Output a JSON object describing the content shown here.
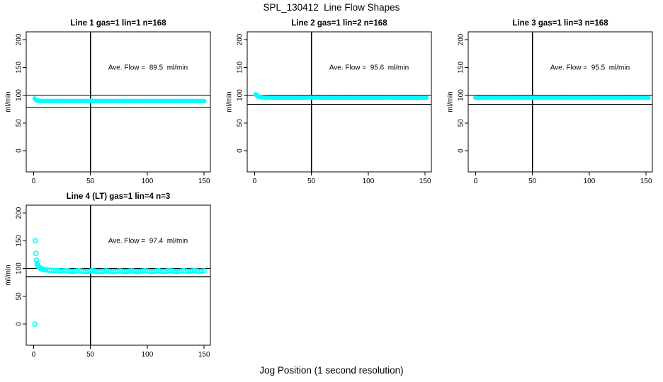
{
  "page": {
    "title": "SPL_130412  Line Flow Shapes",
    "xlabel": "Jog Position (1 second resolution)",
    "background": "#ffffff",
    "marker_color": "#00FFFF",
    "axis_color": "#000000"
  },
  "chart_data": [
    {
      "type": "scatter",
      "title": "Line 1 gas=1 lin=1 n=168",
      "annotation": "Ave. Flow =  89.5  ml/min",
      "ave_flow_ml_min": 89.5,
      "ylabel": "ml/min",
      "x_ticks": [
        0,
        50,
        100,
        150
      ],
      "y_ticks": [
        0,
        50,
        100,
        150,
        200
      ],
      "xlim": [
        -6.5,
        155.5
      ],
      "ylim": [
        -38,
        214
      ],
      "vline_x": 50,
      "hlines": [
        100,
        78.3
      ],
      "marker": "filled-band",
      "marker_color": "#00FFFF",
      "points": [
        [
          1,
          93.8
        ],
        [
          2,
          91.8
        ],
        [
          3,
          90.7
        ],
        [
          4,
          90.1
        ],
        [
          5,
          89.8
        ],
        [
          6,
          89.6
        ],
        [
          8,
          89.5
        ],
        [
          10,
          89.5
        ],
        [
          12,
          89.5
        ],
        [
          14,
          89.5
        ],
        [
          16,
          89.5
        ],
        [
          18,
          89.5
        ],
        [
          20,
          89.5
        ],
        [
          22,
          89.5
        ],
        [
          24,
          89.5
        ],
        [
          26,
          89.5
        ],
        [
          28,
          89.5
        ],
        [
          30,
          89.5
        ],
        [
          32,
          89.5
        ],
        [
          34,
          89.5
        ],
        [
          36,
          89.5
        ],
        [
          38,
          89.5
        ],
        [
          40,
          89.5
        ],
        [
          42,
          89.5
        ],
        [
          44,
          89.5
        ],
        [
          46,
          89.5
        ],
        [
          48,
          89.5
        ],
        [
          50,
          89.5
        ],
        [
          52,
          89.5
        ],
        [
          54,
          89.5
        ],
        [
          56,
          89.5
        ],
        [
          58,
          89.5
        ],
        [
          60,
          89.5
        ],
        [
          62,
          89.5
        ],
        [
          64,
          89.5
        ],
        [
          66,
          89.5
        ],
        [
          68,
          89.5
        ],
        [
          70,
          89.5
        ],
        [
          72,
          89.5
        ],
        [
          74,
          89.5
        ],
        [
          76,
          89.5
        ],
        [
          78,
          89.5
        ],
        [
          80,
          89.5
        ],
        [
          82,
          89.5
        ],
        [
          84,
          89.5
        ],
        [
          86,
          89.5
        ],
        [
          88,
          89.5
        ],
        [
          90,
          89.5
        ],
        [
          92,
          89.5
        ],
        [
          94,
          89.5
        ],
        [
          96,
          89.5
        ],
        [
          98,
          89.5
        ],
        [
          100,
          89.5
        ],
        [
          102,
          89.5
        ],
        [
          104,
          89.5
        ],
        [
          106,
          89.5
        ],
        [
          108,
          89.5
        ],
        [
          110,
          89.5
        ],
        [
          112,
          89.5
        ],
        [
          114,
          89.5
        ],
        [
          116,
          89.5
        ],
        [
          118,
          89.5
        ],
        [
          120,
          89.5
        ],
        [
          122,
          89.5
        ],
        [
          124,
          89.5
        ],
        [
          126,
          89.5
        ],
        [
          128,
          89.5
        ],
        [
          130,
          89.5
        ],
        [
          132,
          89.5
        ],
        [
          134,
          89.5
        ],
        [
          136,
          89.5
        ],
        [
          138,
          89.5
        ],
        [
          140,
          89.5
        ],
        [
          142,
          89.5
        ],
        [
          144,
          89.5
        ],
        [
          146,
          89.5
        ],
        [
          148,
          89.5
        ],
        [
          150,
          89.5
        ]
      ]
    },
    {
      "type": "scatter",
      "title": "Line 2 gas=1 lin=2 n=168",
      "annotation": "Ave. Flow =  95.6  ml/min",
      "ave_flow_ml_min": 95.6,
      "ylabel": "ml/min",
      "x_ticks": [
        0,
        50,
        100,
        150
      ],
      "y_ticks": [
        0,
        50,
        100,
        150,
        200
      ],
      "xlim": [
        -6.5,
        155.5
      ],
      "ylim": [
        -38,
        214
      ],
      "vline_x": 50,
      "hlines": [
        100,
        83.7
      ],
      "marker": "filled-band",
      "marker_color": "#00FFFF",
      "points": [
        [
          1,
          101.5
        ],
        [
          2,
          99.6
        ],
        [
          3,
          98.2
        ],
        [
          4,
          97.3
        ],
        [
          5,
          96.7
        ],
        [
          6,
          96.3
        ],
        [
          8,
          96.0
        ],
        [
          10,
          95.8
        ],
        [
          12,
          95.7
        ],
        [
          14,
          95.6
        ],
        [
          16,
          95.6
        ],
        [
          18,
          95.6
        ],
        [
          20,
          95.6
        ],
        [
          22,
          95.6
        ],
        [
          24,
          95.6
        ],
        [
          26,
          95.6
        ],
        [
          28,
          95.6
        ],
        [
          30,
          95.6
        ],
        [
          32,
          95.6
        ],
        [
          34,
          95.6
        ],
        [
          36,
          95.6
        ],
        [
          38,
          95.6
        ],
        [
          40,
          95.6
        ],
        [
          42,
          95.6
        ],
        [
          44,
          95.6
        ],
        [
          46,
          95.6
        ],
        [
          48,
          95.6
        ],
        [
          50,
          95.6
        ],
        [
          52,
          95.6
        ],
        [
          54,
          95.6
        ],
        [
          56,
          95.6
        ],
        [
          58,
          95.6
        ],
        [
          60,
          95.6
        ],
        [
          62,
          95.6
        ],
        [
          64,
          95.6
        ],
        [
          66,
          95.6
        ],
        [
          68,
          95.6
        ],
        [
          70,
          95.6
        ],
        [
          72,
          95.6
        ],
        [
          74,
          95.6
        ],
        [
          76,
          95.6
        ],
        [
          78,
          95.6
        ],
        [
          80,
          95.6
        ],
        [
          82,
          95.6
        ],
        [
          84,
          95.6
        ],
        [
          86,
          95.6
        ],
        [
          88,
          95.6
        ],
        [
          90,
          95.6
        ],
        [
          92,
          95.6
        ],
        [
          94,
          95.6
        ],
        [
          96,
          95.6
        ],
        [
          98,
          95.6
        ],
        [
          100,
          95.6
        ],
        [
          102,
          95.6
        ],
        [
          104,
          95.6
        ],
        [
          106,
          95.6
        ],
        [
          108,
          95.6
        ],
        [
          110,
          95.6
        ],
        [
          112,
          95.6
        ],
        [
          114,
          95.6
        ],
        [
          116,
          95.6
        ],
        [
          118,
          95.6
        ],
        [
          120,
          95.6
        ],
        [
          122,
          95.6
        ],
        [
          124,
          95.6
        ],
        [
          126,
          95.6
        ],
        [
          128,
          95.6
        ],
        [
          130,
          95.6
        ],
        [
          132,
          95.6
        ],
        [
          134,
          95.6
        ],
        [
          136,
          95.6
        ],
        [
          138,
          95.6
        ],
        [
          140,
          95.6
        ],
        [
          142,
          95.6
        ],
        [
          144,
          95.6
        ],
        [
          146,
          95.6
        ],
        [
          148,
          95.6
        ],
        [
          150,
          95.6
        ],
        [
          151,
          95.6
        ]
      ]
    },
    {
      "type": "scatter",
      "title": "Line 3 gas=1 lin=3 n=168",
      "annotation": "Ave. Flow =  95.5  ml/min",
      "ave_flow_ml_min": 95.5,
      "ylabel": "ml/min",
      "x_ticks": [
        0,
        50,
        100,
        150
      ],
      "y_ticks": [
        0,
        50,
        100,
        150,
        200
      ],
      "xlim": [
        -6.5,
        155.5
      ],
      "ylim": [
        -38,
        214
      ],
      "vline_x": 50,
      "hlines": [
        100,
        83.6
      ],
      "marker": "filled-band",
      "marker_color": "#00FFFF",
      "points": [
        [
          0,
          95.5
        ],
        [
          2,
          95.5
        ],
        [
          4,
          95.5
        ],
        [
          6,
          95.5
        ],
        [
          8,
          95.5
        ],
        [
          10,
          95.5
        ],
        [
          12,
          95.5
        ],
        [
          14,
          95.5
        ],
        [
          16,
          95.5
        ],
        [
          18,
          95.5
        ],
        [
          20,
          95.5
        ],
        [
          22,
          95.5
        ],
        [
          24,
          95.5
        ],
        [
          26,
          95.5
        ],
        [
          28,
          95.5
        ],
        [
          30,
          95.5
        ],
        [
          32,
          95.5
        ],
        [
          34,
          95.5
        ],
        [
          36,
          95.5
        ],
        [
          38,
          95.5
        ],
        [
          40,
          95.5
        ],
        [
          42,
          95.5
        ],
        [
          44,
          95.5
        ],
        [
          46,
          95.5
        ],
        [
          48,
          95.5
        ],
        [
          50,
          95.5
        ],
        [
          52,
          95.5
        ],
        [
          54,
          95.5
        ],
        [
          56,
          95.5
        ],
        [
          58,
          95.5
        ],
        [
          60,
          95.5
        ],
        [
          62,
          95.5
        ],
        [
          64,
          95.5
        ],
        [
          66,
          95.5
        ],
        [
          68,
          95.5
        ],
        [
          70,
          95.5
        ],
        [
          72,
          95.5
        ],
        [
          74,
          95.5
        ],
        [
          76,
          95.5
        ],
        [
          78,
          95.5
        ],
        [
          80,
          95.5
        ],
        [
          82,
          95.5
        ],
        [
          84,
          95.5
        ],
        [
          86,
          95.5
        ],
        [
          88,
          95.5
        ],
        [
          90,
          95.5
        ],
        [
          92,
          95.5
        ],
        [
          94,
          95.5
        ],
        [
          96,
          95.5
        ],
        [
          98,
          95.5
        ],
        [
          100,
          95.5
        ],
        [
          102,
          95.5
        ],
        [
          104,
          95.5
        ],
        [
          106,
          95.5
        ],
        [
          108,
          95.5
        ],
        [
          110,
          95.5
        ],
        [
          112,
          95.5
        ],
        [
          114,
          95.5
        ],
        [
          116,
          95.5
        ],
        [
          118,
          95.5
        ],
        [
          120,
          95.5
        ],
        [
          122,
          95.5
        ],
        [
          124,
          95.5
        ],
        [
          126,
          95.5
        ],
        [
          128,
          95.5
        ],
        [
          130,
          95.5
        ],
        [
          132,
          95.5
        ],
        [
          134,
          95.5
        ],
        [
          136,
          95.5
        ],
        [
          138,
          95.5
        ],
        [
          140,
          95.5
        ],
        [
          142,
          95.5
        ],
        [
          144,
          95.5
        ],
        [
          146,
          95.5
        ],
        [
          148,
          95.5
        ],
        [
          150,
          95.5
        ],
        [
          152,
          95.5
        ]
      ]
    },
    {
      "type": "scatter",
      "title": "Line 4 (LT) gas=1 lin=4 n=3",
      "annotation": "Ave. Flow =  97.4  ml/min",
      "ave_flow_ml_min": 97.4,
      "ylabel": "ml/min",
      "x_ticks": [
        0,
        50,
        100,
        150
      ],
      "y_ticks": [
        0,
        50,
        100,
        150,
        200
      ],
      "xlim": [
        -6.5,
        155.5
      ],
      "ylim": [
        -38,
        214
      ],
      "vline_x": 50,
      "hlines": [
        100,
        85.2
      ],
      "marker": "open-circle",
      "marker_color": "#00FFFF",
      "points": [
        [
          1,
          0
        ],
        [
          1.5,
          150
        ],
        [
          2,
          127
        ],
        [
          2.5,
          115
        ],
        [
          3,
          109
        ],
        [
          3.5,
          106
        ],
        [
          4,
          104
        ],
        [
          5,
          102
        ],
        [
          6,
          100.5
        ],
        [
          7,
          99.5
        ],
        [
          8,
          98.8
        ],
        [
          9,
          98.2
        ],
        [
          10,
          97.8
        ],
        [
          12,
          97.2
        ],
        [
          14,
          96.8
        ],
        [
          16,
          96.5
        ],
        [
          18,
          96.3
        ],
        [
          20,
          96.5
        ],
        [
          22,
          96.0
        ],
        [
          24,
          95.5
        ],
        [
          26,
          95.8
        ],
        [
          28,
          96.2
        ],
        [
          30,
          96.0
        ],
        [
          32,
          95.3
        ],
        [
          34,
          94.8
        ],
        [
          36,
          95.2
        ],
        [
          38,
          95.8
        ],
        [
          40,
          96.2
        ],
        [
          42,
          95.6
        ],
        [
          44,
          95.0
        ],
        [
          46,
          94.6
        ],
        [
          48,
          95.0
        ],
        [
          50,
          95.5
        ],
        [
          52,
          96.0
        ],
        [
          54,
          95.4
        ],
        [
          56,
          94.8
        ],
        [
          58,
          94.4
        ],
        [
          60,
          94.9
        ],
        [
          62,
          95.4
        ],
        [
          64,
          95.9
        ],
        [
          66,
          95.3
        ],
        [
          68,
          94.7
        ],
        [
          70,
          94.3
        ],
        [
          72,
          94.8
        ],
        [
          74,
          95.3
        ],
        [
          76,
          95.8
        ],
        [
          78,
          95.2
        ],
        [
          80,
          94.6
        ],
        [
          82,
          94.9
        ],
        [
          84,
          95.4
        ],
        [
          86,
          95.9
        ],
        [
          88,
          95.4
        ],
        [
          90,
          94.8
        ],
        [
          92,
          94.4
        ],
        [
          94,
          94.9
        ],
        [
          96,
          95.5
        ],
        [
          98,
          96.0
        ],
        [
          100,
          95.5
        ],
        [
          102,
          94.9
        ],
        [
          104,
          94.5
        ],
        [
          106,
          95.0
        ],
        [
          108,
          95.5
        ],
        [
          110,
          96.0
        ],
        [
          112,
          95.4
        ],
        [
          114,
          94.8
        ],
        [
          116,
          95.2
        ],
        [
          118,
          95.7
        ],
        [
          120,
          96.1
        ],
        [
          122,
          95.5
        ],
        [
          124,
          94.9
        ],
        [
          126,
          94.5
        ],
        [
          128,
          95.0
        ],
        [
          130,
          95.6
        ],
        [
          132,
          96.1
        ],
        [
          134,
          95.5
        ],
        [
          136,
          94.9
        ],
        [
          138,
          95.3
        ],
        [
          140,
          95.8
        ],
        [
          142,
          96.2
        ],
        [
          144,
          95.6
        ],
        [
          146,
          95.0
        ],
        [
          148,
          95.4
        ],
        [
          150,
          95.8
        ]
      ]
    }
  ]
}
